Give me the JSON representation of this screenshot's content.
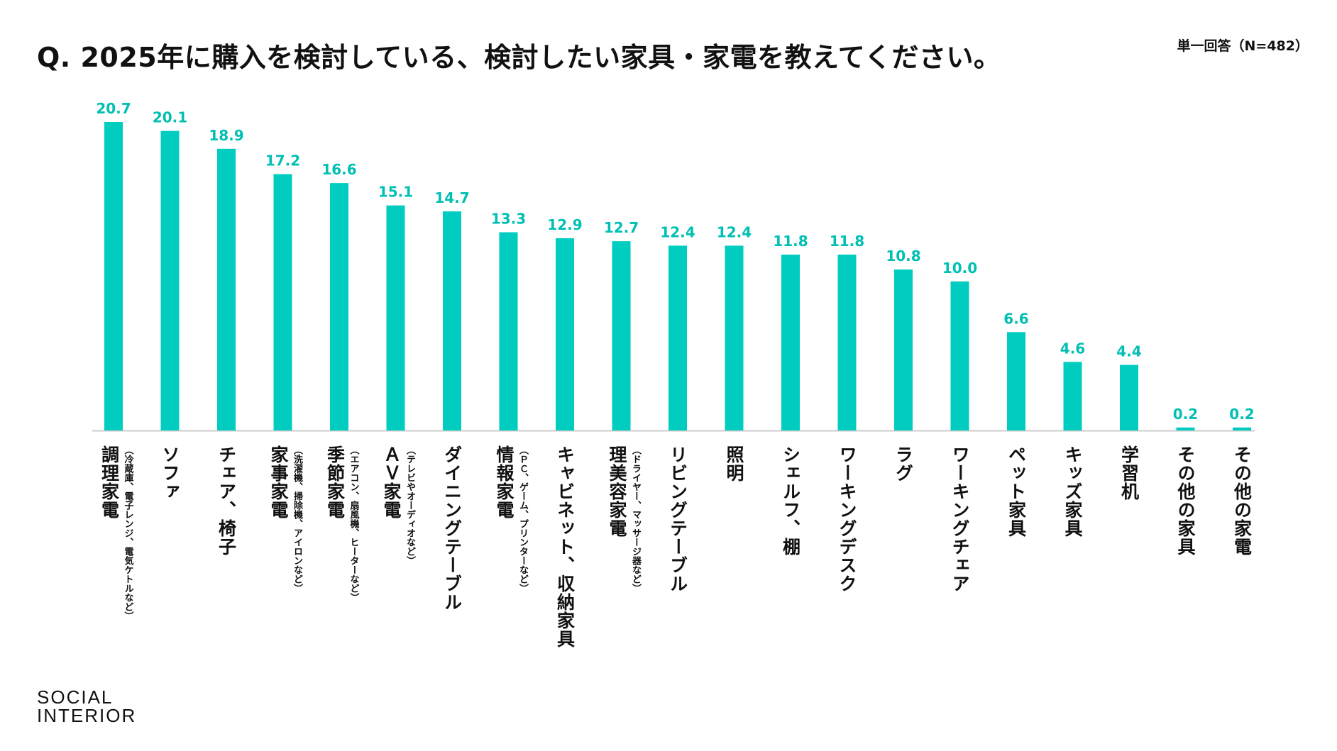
{
  "title": "Q. 2025年に購入を検討している、検討したい家具・家電を教えてください。",
  "note": "単一回答（N=482）",
  "logo": {
    "line1": "SOCIAL",
    "line2": "INTERIOR"
  },
  "colors": {
    "bar": "#00cdbf",
    "value_label": "#00bfb3",
    "axis": "#cccccc"
  },
  "chart_data": {
    "type": "bar",
    "categories": [
      {
        "name": "調理家電",
        "sub": "（冷蔵庫、電子レンジ、電気ケトルなど）"
      },
      {
        "name": "ソファ",
        "sub": ""
      },
      {
        "name": "チェア、椅子",
        "sub": ""
      },
      {
        "name": "家事家電",
        "sub": "（洗濯機、掃除機、アイロンなど）"
      },
      {
        "name": "季節家電",
        "sub": "（エアコン、扇風機、ヒーターなど）"
      },
      {
        "name": "ＡＶ家電",
        "sub": "（テレビやオーディオなど）"
      },
      {
        "name": "ダイニングテーブル",
        "sub": ""
      },
      {
        "name": "情報家電",
        "sub": "（ＰＣ、ゲーム、プリンターなど）"
      },
      {
        "name": "キャビネット、収納家具",
        "sub": ""
      },
      {
        "name": "理美容家電",
        "sub": "（ドライヤー、マッサージ器など）"
      },
      {
        "name": "リビングテーブル",
        "sub": ""
      },
      {
        "name": "照明",
        "sub": ""
      },
      {
        "name": "シェルフ、棚",
        "sub": ""
      },
      {
        "name": "ワーキングデスク",
        "sub": ""
      },
      {
        "name": "ラグ",
        "sub": ""
      },
      {
        "name": "ワーキングチェア",
        "sub": ""
      },
      {
        "name": "ペット家具",
        "sub": ""
      },
      {
        "name": "キッズ家具",
        "sub": ""
      },
      {
        "name": "学習机",
        "sub": ""
      },
      {
        "name": "その他の家具",
        "sub": ""
      },
      {
        "name": "その他の家電",
        "sub": ""
      }
    ],
    "values": [
      20.7,
      20.1,
      18.9,
      17.2,
      16.6,
      15.1,
      14.7,
      13.3,
      12.9,
      12.7,
      12.4,
      12.4,
      11.8,
      11.8,
      10.8,
      10.0,
      6.6,
      4.6,
      4.4,
      0.2,
      0.2
    ],
    "value_labels": [
      "20.7",
      "20.1",
      "18.9",
      "17.2",
      "16.6",
      "15.1",
      "14.7",
      "13.3",
      "12.9",
      "12.7",
      "12.4",
      "12.4",
      "11.8",
      "11.8",
      "10.8",
      "10.0",
      "6.6",
      "4.6",
      "4.4",
      "0.2",
      "0.2"
    ],
    "ylim": [
      0,
      20.7
    ],
    "grid": false,
    "legend": "none"
  }
}
